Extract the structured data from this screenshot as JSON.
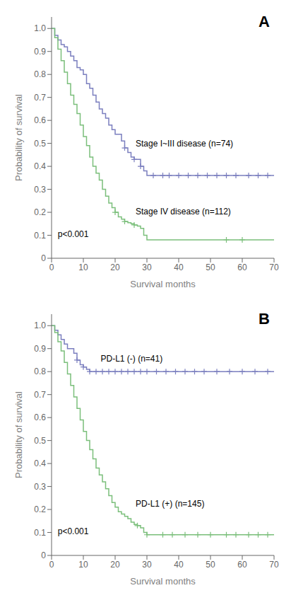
{
  "chart_data": [
    {
      "type": "step",
      "title": "A",
      "xlabel": "Survival months",
      "ylabel": "Probability of survival",
      "xlim": [
        0,
        70
      ],
      "ylim": [
        0,
        1.05
      ],
      "xticks": [
        0,
        10,
        20,
        30,
        40,
        50,
        60,
        70
      ],
      "yticks": [
        0,
        0.1,
        0.2,
        0.3,
        0.4,
        0.5,
        0.6,
        0.7,
        0.8,
        0.9,
        {
          "value": 1.0,
          "label": "1.0"
        }
      ],
      "series": [
        {
          "name": "Stage I~III disease (n=74)",
          "color": "#7b7fbf",
          "x": [
            0,
            1,
            2,
            3,
            4,
            5,
            6,
            7,
            8,
            9,
            10,
            11,
            12,
            13,
            14,
            15,
            16,
            17,
            18,
            19,
            20,
            21,
            22,
            23,
            24,
            25,
            26,
            27,
            28,
            29,
            30,
            31,
            32,
            35,
            37,
            70
          ],
          "values": [
            1.0,
            0.97,
            0.95,
            0.93,
            0.92,
            0.9,
            0.88,
            0.86,
            0.83,
            0.82,
            0.8,
            0.76,
            0.74,
            0.71,
            0.68,
            0.65,
            0.63,
            0.61,
            0.58,
            0.56,
            0.54,
            0.54,
            0.51,
            0.48,
            0.46,
            0.44,
            0.43,
            0.43,
            0.4,
            0.38,
            0.36,
            0.36,
            0.36,
            0.36,
            0.36,
            0.36
          ],
          "censor_x": [
            23,
            26,
            28,
            32,
            35,
            37,
            40,
            43,
            46,
            49,
            52,
            55,
            58,
            62,
            65,
            68
          ],
          "censor_y": [
            0.48,
            0.43,
            0.4,
            0.36,
            0.36,
            0.36,
            0.36,
            0.36,
            0.36,
            0.36,
            0.36,
            0.36,
            0.36,
            0.36,
            0.36,
            0.36
          ]
        },
        {
          "name": "Stage IV disease (n=112)",
          "color": "#7bbf7b",
          "x": [
            0,
            1,
            2,
            3,
            4,
            5,
            6,
            7,
            8,
            9,
            10,
            11,
            12,
            13,
            14,
            15,
            16,
            17,
            18,
            19,
            20,
            21,
            22,
            23,
            24,
            25,
            26,
            27,
            28,
            29,
            30,
            35,
            60,
            70
          ],
          "values": [
            1.0,
            0.96,
            0.91,
            0.86,
            0.81,
            0.76,
            0.71,
            0.67,
            0.63,
            0.58,
            0.53,
            0.49,
            0.44,
            0.4,
            0.37,
            0.34,
            0.3,
            0.27,
            0.24,
            0.22,
            0.2,
            0.18,
            0.17,
            0.16,
            0.155,
            0.15,
            0.145,
            0.14,
            0.13,
            0.1,
            0.08,
            0.08,
            0.08,
            0.08
          ],
          "censor_x": [
            20,
            23,
            26,
            55,
            60
          ],
          "censor_y": [
            0.2,
            0.16,
            0.145,
            0.08,
            0.08
          ]
        }
      ],
      "annotations": [
        {
          "text": "Stage I~III disease (n=74)",
          "x": 26,
          "y": 0.5
        },
        {
          "text": "Stage IV disease (n=112)",
          "x": 26,
          "y": 0.205
        },
        {
          "text": "p<0.001",
          "x": 1.5,
          "y": 0.105
        }
      ]
    },
    {
      "type": "step",
      "title": "B",
      "xlabel": "Survival months",
      "ylabel": "Probability of survival",
      "xlim": [
        0,
        70
      ],
      "ylim": [
        0,
        1.05
      ],
      "xticks": [
        0,
        10,
        20,
        30,
        40,
        50,
        60,
        70
      ],
      "yticks": [
        0,
        0.1,
        0.2,
        0.3,
        0.4,
        0.5,
        0.6,
        0.7,
        0.8,
        0.9,
        {
          "value": 1.0,
          "label": "1.0"
        }
      ],
      "series": [
        {
          "name": "PD-L1 (-) (n=41)",
          "color": "#7b7fbf",
          "x": [
            0,
            1,
            2,
            3,
            4,
            5,
            6,
            7,
            8,
            9,
            10,
            11,
            12,
            13,
            70
          ],
          "values": [
            1.0,
            0.98,
            0.96,
            0.94,
            0.92,
            0.9,
            0.9,
            0.88,
            0.85,
            0.83,
            0.82,
            0.81,
            0.8,
            0.8,
            0.8
          ],
          "censor_x": [
            8,
            10,
            12,
            14,
            16,
            18,
            20,
            22,
            24,
            26,
            28,
            30,
            33,
            36,
            39,
            42,
            45,
            48,
            52,
            56,
            60,
            64,
            68
          ],
          "censor_y": [
            0.85,
            0.82,
            0.8,
            0.8,
            0.8,
            0.8,
            0.8,
            0.8,
            0.8,
            0.8,
            0.8,
            0.8,
            0.8,
            0.8,
            0.8,
            0.8,
            0.8,
            0.8,
            0.8,
            0.8,
            0.8,
            0.8,
            0.8
          ]
        },
        {
          "name": "PD-L1 (+) (n=145)",
          "color": "#7bbf7b",
          "x": [
            0,
            1,
            2,
            3,
            4,
            5,
            6,
            7,
            8,
            9,
            10,
            11,
            12,
            13,
            14,
            15,
            16,
            17,
            18,
            19,
            20,
            21,
            22,
            23,
            24,
            25,
            26,
            27,
            28,
            29,
            30,
            31,
            32,
            35,
            38,
            70
          ],
          "values": [
            1.0,
            0.97,
            0.93,
            0.89,
            0.84,
            0.79,
            0.74,
            0.69,
            0.64,
            0.59,
            0.54,
            0.5,
            0.46,
            0.42,
            0.38,
            0.35,
            0.32,
            0.29,
            0.26,
            0.23,
            0.21,
            0.19,
            0.18,
            0.17,
            0.16,
            0.145,
            0.135,
            0.13,
            0.12,
            0.1,
            0.09,
            0.09,
            0.09,
            0.09,
            0.09,
            0.09
          ],
          "censor_x": [
            27,
            30,
            35,
            38,
            42,
            46,
            50,
            55,
            58,
            62,
            65,
            68
          ],
          "censor_y": [
            0.13,
            0.09,
            0.09,
            0.09,
            0.09,
            0.09,
            0.09,
            0.09,
            0.09,
            0.09,
            0.09,
            0.09
          ]
        }
      ],
      "annotations": [
        {
          "text": "PD-L1 (-) (n=41)",
          "x": 15,
          "y": 0.856
        },
        {
          "text": "PD-L1 (+) (n=145)",
          "x": 26,
          "y": 0.225
        },
        {
          "text": "p<0.001",
          "x": 1.5,
          "y": 0.105
        }
      ]
    }
  ]
}
